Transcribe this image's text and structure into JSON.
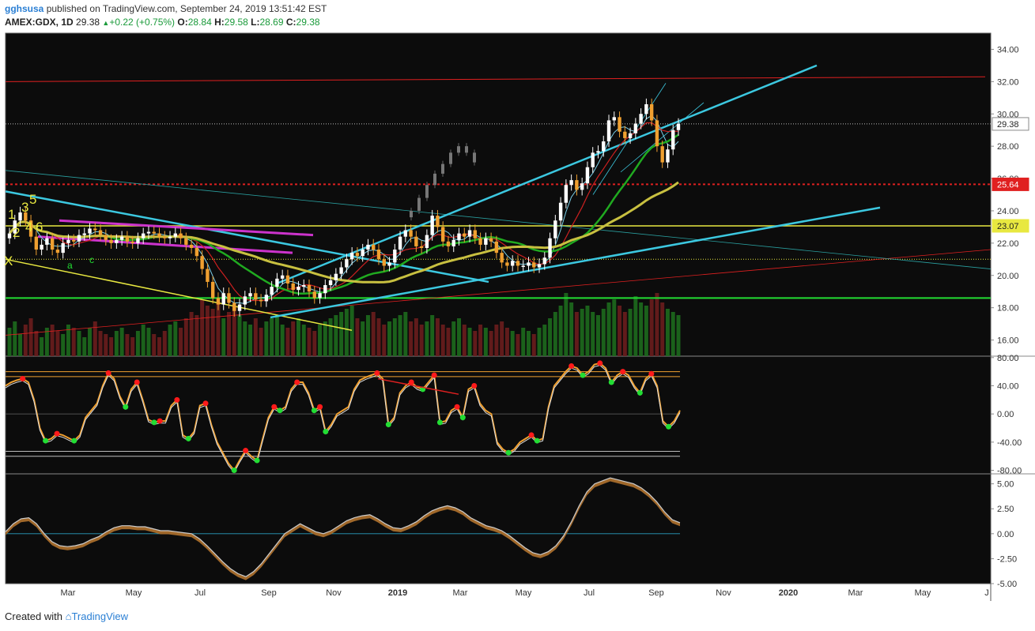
{
  "header": {
    "user": "gghsusa",
    "published_text": "published on TradingView.com, September 24, 2019 13:51:42 EST",
    "symbol": "AMEX:GDX, 1D",
    "last": "29.38",
    "change": "+0.22 (+0.75%)",
    "o_label": "O:",
    "o_value": "28.84",
    "h_label": "H:",
    "h_value": "29.58",
    "l_label": "L:",
    "l_value": "28.69",
    "c_label": "C:",
    "c_value": "29.38"
  },
  "footer": {
    "created_with": "Created with",
    "brand": "TradingView"
  },
  "colors": {
    "background": "#0c0c0c",
    "up": "#ffffff",
    "down": "#f0a030",
    "cyan": "#3cc8e0",
    "green": "#22dd33",
    "yellow": "#e8e840",
    "red": "#e02020",
    "magenta": "#cc33cc",
    "olive": "#c8c040"
  },
  "chart_data": [
    {
      "type": "candlestick",
      "x_ticks": [
        "Mar",
        "May",
        "Jul",
        "Sep",
        "Nov",
        "2019",
        "Mar",
        "May",
        "Jul",
        "Sep",
        "Nov",
        "2020",
        "Mar",
        "May",
        "J"
      ],
      "y_ticks": [
        "34.00",
        "32.00",
        "30.00",
        "28.00",
        "26.00",
        "24.00",
        "22.00",
        "20.00",
        "18.00",
        "16.00"
      ],
      "ylim": [
        15.0,
        35.0
      ],
      "price_labels": [
        {
          "value": 29.38,
          "text": "29.38"
        },
        {
          "value": 25.64,
          "text": "25.64"
        },
        {
          "value": 23.07,
          "text": "23.07"
        }
      ],
      "wave_labels": [
        "1",
        "3",
        "5",
        "2",
        "4",
        "6",
        "X",
        "a",
        "c"
      ],
      "closes": [
        22.6,
        23.4,
        23.9,
        23.4,
        22.4,
        21.6,
        21.9,
        22.3,
        21.6,
        21.4,
        22.0,
        22.2,
        22.1,
        22.5,
        22.6,
        22.9,
        22.8,
        22.5,
        22.2,
        22.0,
        22.2,
        22.4,
        22.1,
        22.0,
        22.3,
        22.6,
        22.7,
        22.6,
        22.4,
        22.3,
        22.4,
        22.6,
        22.3,
        21.9,
        21.7,
        21.2,
        20.4,
        19.6,
        18.6,
        18.2,
        18.9,
        18.3,
        17.8,
        18.2,
        18.7,
        18.9,
        18.5,
        18.4,
        18.8,
        19.3,
        19.8,
        20.0,
        19.5,
        19.1,
        19.3,
        19.4,
        19.0,
        18.6,
        18.9,
        19.4,
        19.7,
        20.1,
        20.5,
        21.0,
        21.4,
        21.2,
        21.6,
        21.9,
        21.6,
        21.0,
        20.6,
        20.8,
        21.6,
        22.4,
        22.8,
        22.4,
        21.8,
        21.7,
        22.5,
        23.7,
        23.0,
        22.1,
        21.8,
        22.2,
        22.6,
        22.4,
        22.8,
        22.3,
        21.9,
        22.3,
        22.1,
        21.4,
        20.8,
        20.6,
        20.9,
        20.6,
        20.6,
        20.8,
        20.5,
        20.7,
        21.1,
        22.3,
        23.4,
        24.5,
        25.6,
        25.9,
        25.3,
        25.7,
        26.7,
        27.6,
        27.7,
        28.3,
        29.6,
        29.8,
        28.9,
        28.5,
        28.8,
        29.4,
        30.0,
        30.6,
        29.6,
        28.0,
        27.0,
        27.8,
        29.0,
        29.38
      ],
      "overlay_closes": [
        24.0,
        24.8,
        25.6,
        26.3,
        26.9,
        27.6,
        28.0,
        27.6,
        27.0
      ],
      "volume_relative": [
        0.45,
        0.55,
        0.35,
        0.5,
        0.6,
        0.4,
        0.3,
        0.45,
        0.5,
        0.4,
        0.35,
        0.5,
        0.45,
        0.4,
        0.3,
        0.45,
        0.55,
        0.4,
        0.35,
        0.3,
        0.4,
        0.45,
        0.35,
        0.3,
        0.4,
        0.5,
        0.45,
        0.35,
        0.3,
        0.4,
        0.5,
        0.55,
        0.45,
        0.6,
        0.7,
        0.65,
        0.9,
        0.8,
        0.75,
        0.85,
        0.6,
        0.7,
        0.8,
        0.65,
        0.55,
        0.5,
        0.6,
        0.45,
        0.55,
        0.6,
        0.65,
        0.5,
        0.45,
        0.55,
        0.6,
        0.5,
        0.45,
        0.4,
        0.5,
        0.55,
        0.6,
        0.65,
        0.7,
        0.75,
        0.8,
        0.6,
        0.55,
        0.65,
        0.7,
        0.6,
        0.5,
        0.55,
        0.6,
        0.65,
        0.7,
        0.55,
        0.6,
        0.5,
        0.55,
        0.65,
        0.6,
        0.5,
        0.45,
        0.55,
        0.6,
        0.5,
        0.45,
        0.4,
        0.5,
        0.45,
        0.4,
        0.5,
        0.55,
        0.45,
        0.4,
        0.35,
        0.45,
        0.4,
        0.35,
        0.45,
        0.5,
        0.6,
        0.7,
        0.8,
        1.0,
        0.85,
        0.7,
        0.75,
        0.8,
        0.7,
        0.65,
        0.75,
        0.85,
        0.9,
        0.8,
        0.7,
        0.75,
        0.95,
        0.85,
        0.8,
        0.9,
        1.0,
        0.85,
        0.75,
        0.7,
        0.65
      ]
    },
    {
      "type": "line",
      "name_note": "oscillator panel",
      "y_ticks": [
        "80.00",
        "40.00",
        "0.00",
        "-40.00",
        "-80.00"
      ],
      "ylim": [
        -85,
        82
      ],
      "values": [
        40,
        45,
        48,
        50,
        45,
        20,
        -20,
        -38,
        -35,
        -28,
        -30,
        -34,
        -38,
        -30,
        -5,
        5,
        15,
        40,
        58,
        50,
        25,
        10,
        35,
        45,
        20,
        -8,
        -12,
        -10,
        -10,
        12,
        20,
        -30,
        -35,
        -25,
        12,
        15,
        -15,
        -40,
        -55,
        -70,
        -80,
        -65,
        -52,
        -60,
        -66,
        -35,
        -5,
        10,
        5,
        10,
        35,
        45,
        45,
        30,
        5,
        10,
        -25,
        -15,
        0,
        5,
        10,
        35,
        48,
        52,
        55,
        58,
        50,
        -15,
        -5,
        30,
        40,
        45,
        38,
        35,
        45,
        55,
        -12,
        -10,
        5,
        10,
        -5,
        35,
        40,
        15,
        5,
        0,
        -40,
        -50,
        -55,
        -50,
        -40,
        -35,
        -30,
        -38,
        -35,
        10,
        40,
        50,
        60,
        68,
        65,
        55,
        60,
        70,
        72,
        65,
        45,
        55,
        60,
        55,
        40,
        30,
        50,
        57,
        40,
        -10,
        -18,
        -10,
        5
      ],
      "bands": [
        60,
        53,
        -53,
        -60
      ]
    },
    {
      "type": "area",
      "name_note": "momentum panel",
      "y_ticks": [
        "5.00",
        "2.50",
        "0.00",
        "-2.50",
        "-5.00"
      ],
      "ylim": [
        -5.0,
        6.0
      ],
      "values": [
        0.2,
        1.0,
        1.5,
        1.6,
        1.0,
        0.0,
        -0.8,
        -1.2,
        -1.3,
        -1.2,
        -1.0,
        -0.6,
        -0.3,
        0.2,
        0.6,
        0.8,
        0.8,
        0.7,
        0.7,
        0.5,
        0.3,
        0.3,
        0.2,
        0.1,
        0.0,
        -0.5,
        -1.2,
        -2.0,
        -2.8,
        -3.5,
        -4.0,
        -4.3,
        -3.8,
        -3.0,
        -2.0,
        -1.0,
        0.0,
        0.5,
        1.0,
        0.6,
        0.2,
        0.0,
        0.3,
        0.8,
        1.3,
        1.6,
        1.8,
        1.9,
        1.5,
        1.0,
        0.6,
        0.5,
        0.8,
        1.2,
        1.8,
        2.3,
        2.6,
        2.8,
        2.6,
        2.2,
        1.6,
        1.2,
        0.8,
        0.6,
        0.3,
        -0.2,
        -0.8,
        -1.4,
        -1.9,
        -2.1,
        -1.8,
        -1.2,
        -0.2,
        1.2,
        2.8,
        4.2,
        5.0,
        5.3,
        5.6,
        5.4,
        5.2,
        5.0,
        4.6,
        4.0,
        3.2,
        2.2,
        1.4,
        1.1
      ]
    }
  ]
}
